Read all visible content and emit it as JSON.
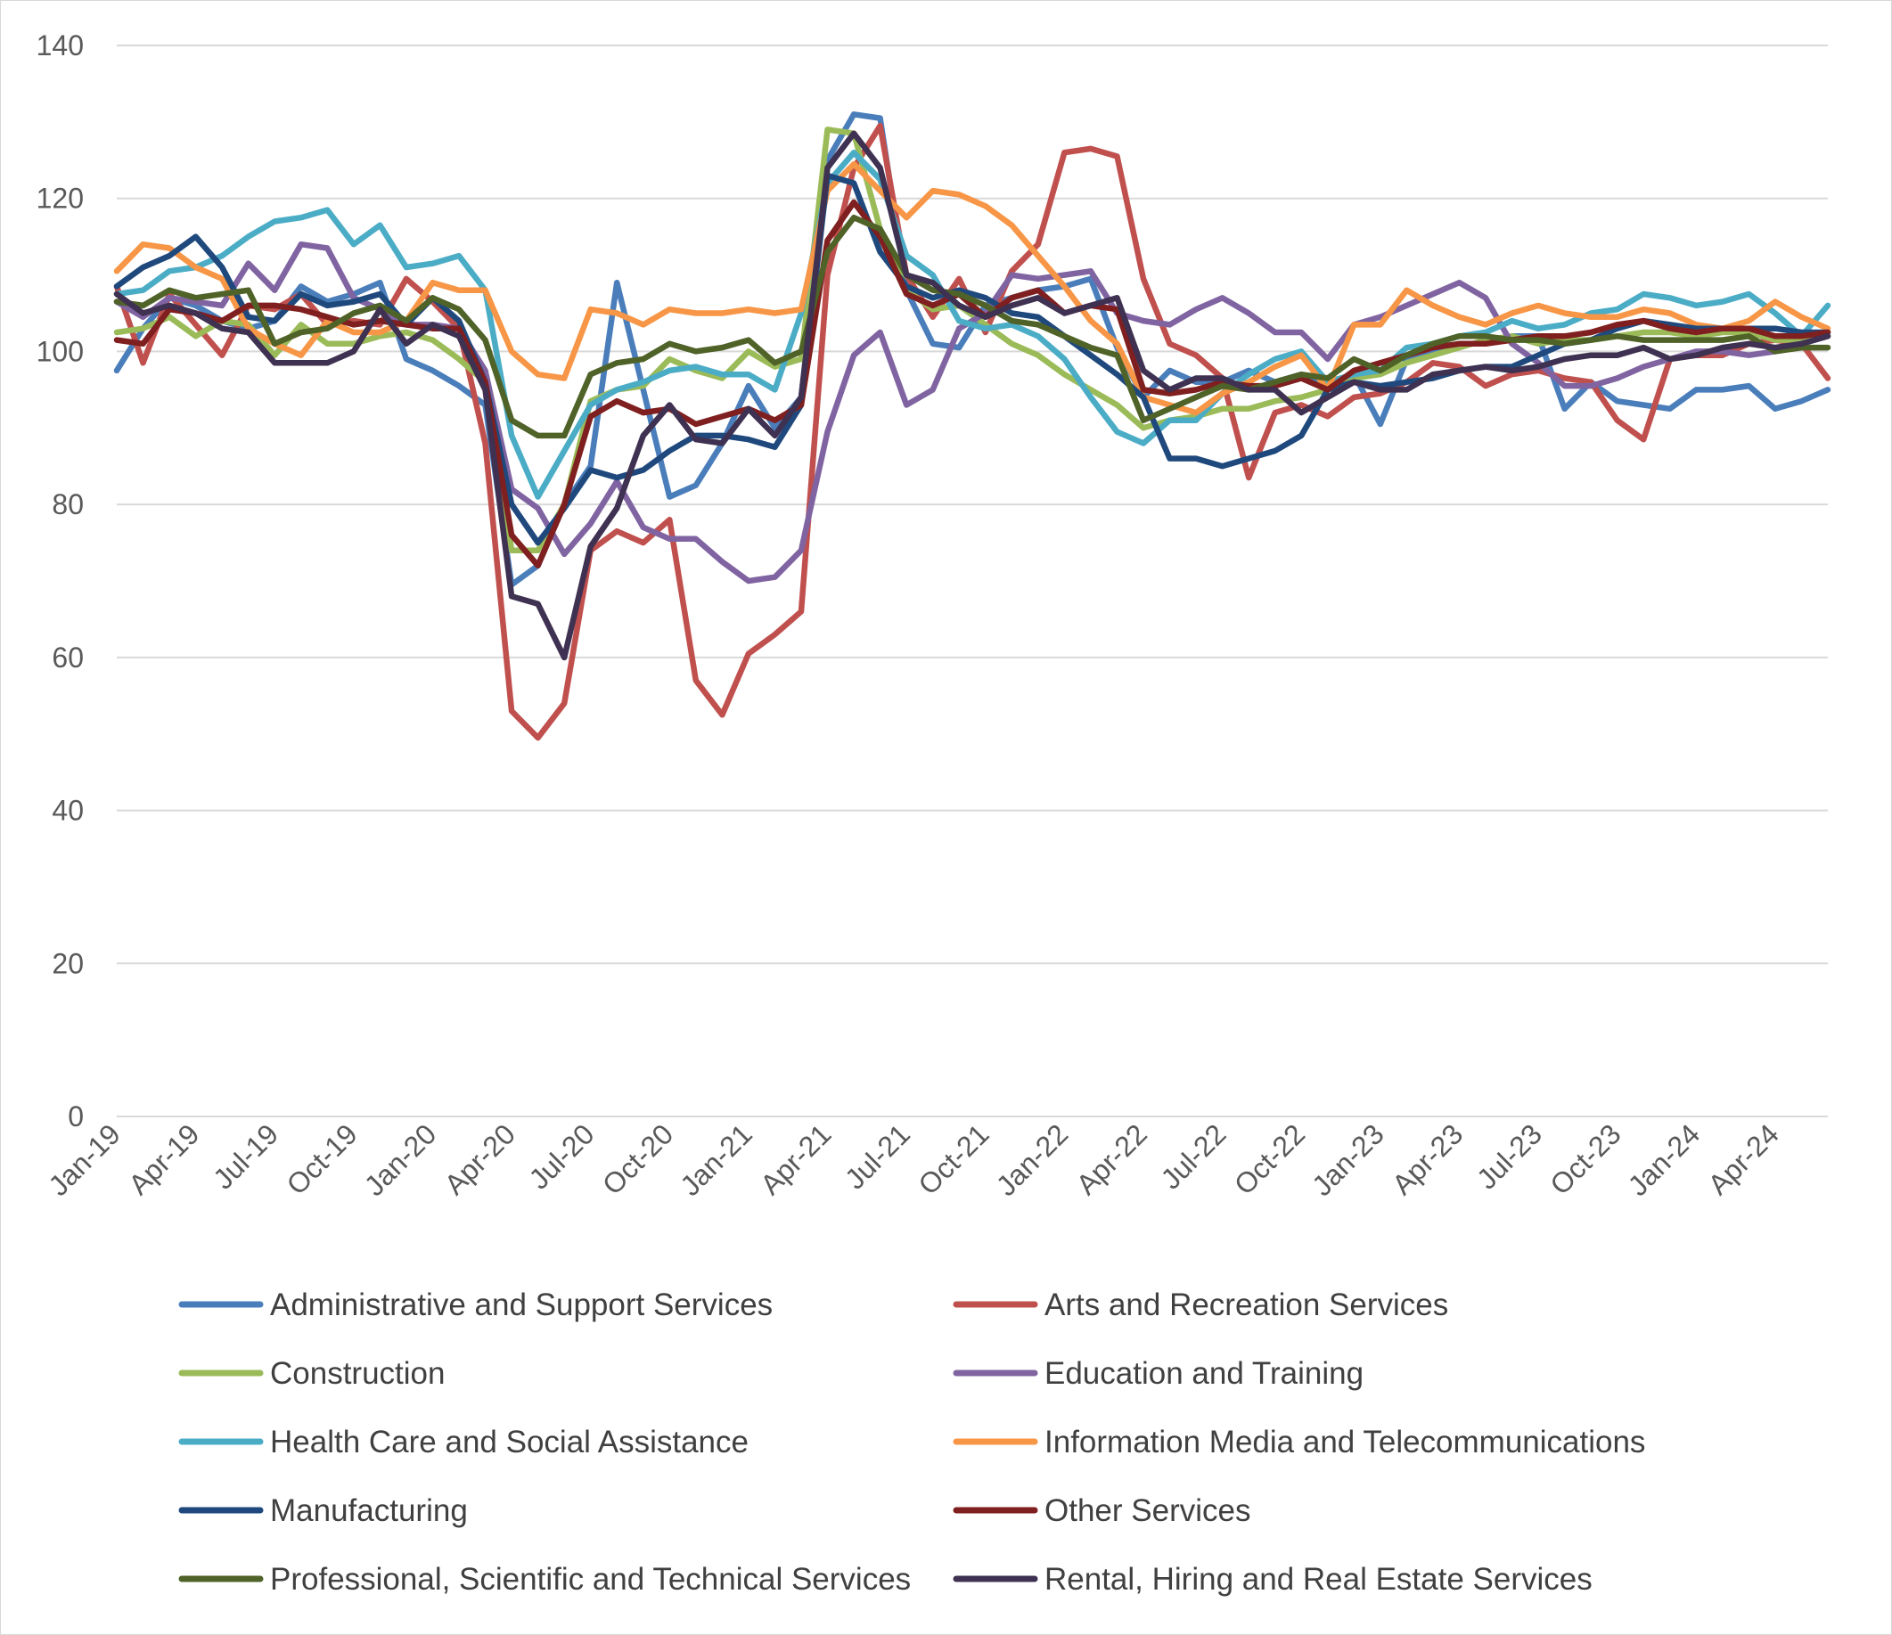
{
  "chart_data": {
    "type": "line",
    "title": "",
    "xlabel": "",
    "ylabel": "",
    "ylim": [
      0,
      140
    ],
    "yticks": [
      "0",
      "20",
      "40",
      "60",
      "80",
      "100",
      "120",
      "140"
    ],
    "grid": true,
    "legend_position": "bottom",
    "x": [
      "Jan-19",
      "Feb-19",
      "Mar-19",
      "Apr-19",
      "May-19",
      "Jun-19",
      "Jul-19",
      "Aug-19",
      "Sep-19",
      "Oct-19",
      "Nov-19",
      "Dec-19",
      "Jan-20",
      "Feb-20",
      "Mar-20",
      "Apr-20",
      "May-20",
      "Jun-20",
      "Jul-20",
      "Aug-20",
      "Sep-20",
      "Oct-20",
      "Nov-20",
      "Dec-20",
      "Jan-21",
      "Feb-21",
      "Mar-21",
      "Apr-21",
      "May-21",
      "Jun-21",
      "Jul-21",
      "Aug-21",
      "Sep-21",
      "Oct-21",
      "Nov-21",
      "Dec-21",
      "Jan-22",
      "Feb-22",
      "Mar-22",
      "Apr-22",
      "May-22",
      "Jun-22",
      "Jul-22",
      "Aug-22",
      "Sep-22",
      "Oct-22",
      "Nov-22",
      "Dec-22",
      "Jan-23",
      "Feb-23",
      "Mar-23",
      "Apr-23",
      "May-23",
      "Jun-23",
      "Jul-23",
      "Aug-23",
      "Sep-23",
      "Oct-23",
      "Nov-23",
      "Dec-23",
      "Jan-24",
      "Feb-24",
      "Mar-24",
      "Apr-24",
      "May-24",
      "Jun-24"
    ],
    "x_tick_labels": [
      "Jan-19",
      "Apr-19",
      "Jul-19",
      "Oct-19",
      "Jan-20",
      "Apr-20",
      "Jul-20",
      "Oct-20",
      "Jan-21",
      "Apr-21",
      "Jul-21",
      "Oct-21",
      "Jan-22",
      "Apr-22",
      "Jul-22",
      "Oct-22",
      "Jan-23",
      "Apr-23",
      "Jul-23",
      "Oct-23",
      "Jan-24",
      "Apr-24"
    ],
    "series": [
      {
        "name": "Administrative and Support Services",
        "color": "#4a7ebb",
        "values": [
          97.5,
          103,
          107,
          106,
          104,
          103,
          104,
          108.5,
          106.5,
          107.5,
          109,
          99,
          97.5,
          95.5,
          93,
          69.5,
          72,
          80,
          85,
          109,
          95,
          81,
          82.5,
          88,
          95.5,
          90,
          94,
          125,
          131,
          130.5,
          108,
          101,
          100.5,
          106,
          107,
          108,
          108.5,
          109.5,
          100.5,
          94,
          97.5,
          96,
          96,
          97.5,
          96,
          97,
          96,
          97,
          90.5,
          99,
          100,
          101,
          101,
          102,
          102,
          92.5,
          96,
          93.5,
          93,
          92.5,
          95,
          95,
          95.5,
          92.5,
          93.5,
          95
        ]
      },
      {
        "name": "Arts and Recreation Services",
        "color": "#c0504d",
        "values": [
          108.5,
          98.5,
          107.5,
          103.5,
          99.5,
          106,
          105.5,
          107.5,
          103.5,
          104,
          103.5,
          109.5,
          106.5,
          103,
          88,
          53,
          49.5,
          54,
          74,
          76.5,
          75,
          78,
          57,
          52.5,
          60.5,
          63,
          66,
          110,
          124,
          129.5,
          110,
          104.5,
          109.5,
          102.5,
          110.5,
          114,
          126,
          126.5,
          125.5,
          109.5,
          101,
          99.5,
          96.5,
          83.5,
          92,
          93,
          91.5,
          94,
          94.5,
          96,
          98.5,
          98,
          95.5,
          97,
          97.5,
          96.5,
          96,
          91,
          88.5,
          99,
          99.5,
          99.5,
          101,
          101.5,
          101,
          96.5
        ]
      },
      {
        "name": "Construction",
        "color": "#9bbb59",
        "values": [
          102.5,
          103,
          104.5,
          102,
          104,
          103.5,
          99.5,
          103.5,
          101,
          101,
          102,
          102.5,
          101.5,
          99,
          96,
          74,
          74,
          80,
          93.5,
          95,
          95.5,
          99,
          97.5,
          96.5,
          100,
          98,
          99,
          129,
          128.5,
          116,
          108,
          105.5,
          106,
          103.5,
          101,
          99.5,
          97,
          95,
          93,
          90,
          91,
          91.5,
          92.5,
          92.5,
          93.5,
          94,
          95,
          96.5,
          97,
          98.5,
          99.5,
          100.5,
          101.5,
          102,
          101,
          101.5,
          101.5,
          102,
          102.5,
          102.5,
          102,
          102.5,
          102.5,
          101.5,
          101.5,
          102
        ]
      },
      {
        "name": "Education and Training",
        "color": "#8064a2",
        "values": [
          106.5,
          104.5,
          107,
          106.5,
          106,
          111.5,
          108,
          114,
          113.5,
          107,
          105.5,
          103.5,
          103.5,
          103,
          97.5,
          82,
          79.5,
          73.5,
          77.5,
          83,
          77,
          75.5,
          75.5,
          72.5,
          70,
          70.5,
          74,
          89.5,
          99.5,
          102.5,
          93,
          95,
          103,
          105,
          110,
          109.5,
          110,
          110.5,
          105,
          104,
          103.5,
          105.5,
          107,
          105,
          102.5,
          102.5,
          99,
          103.5,
          104.5,
          106,
          107.5,
          109,
          107,
          101,
          98.5,
          95.5,
          95.5,
          96.5,
          98,
          99,
          100,
          100,
          99.5,
          100,
          101,
          102
        ]
      },
      {
        "name": "Health Care and Social Assistance",
        "color": "#4bacc6",
        "values": [
          107.5,
          108,
          110.5,
          111,
          112.5,
          115,
          117,
          117.5,
          118.5,
          114,
          116.5,
          111,
          111.5,
          112.5,
          108,
          89,
          81,
          87,
          93,
          95,
          96,
          97.5,
          98,
          97,
          97,
          95,
          105,
          122,
          126,
          122.5,
          112.5,
          110,
          104,
          103,
          103.5,
          102,
          99,
          94,
          89.5,
          88,
          91,
          91,
          94.5,
          97,
          99,
          100,
          96,
          97,
          97.5,
          100.5,
          101,
          102,
          102.5,
          104,
          103,
          103.5,
          105,
          105.5,
          107.5,
          107,
          106,
          106.5,
          107.5,
          105,
          102,
          106
        ]
      },
      {
        "name": "Information Media and Telecommunications",
        "color": "#f79646",
        "values": [
          110.5,
          114,
          113.5,
          111,
          109.5,
          103,
          101,
          99.5,
          104,
          102.5,
          102.5,
          104,
          109,
          108,
          108,
          100,
          97,
          96.5,
          105.5,
          105,
          103.5,
          105.5,
          105,
          105,
          105.5,
          105,
          105.5,
          121,
          124.5,
          121,
          117.5,
          121,
          120.5,
          119,
          116.5,
          112.5,
          108.5,
          104,
          101,
          94,
          93,
          92,
          94.5,
          96,
          98,
          99.5,
          95,
          103.5,
          103.5,
          108,
          106,
          104.5,
          103.5,
          105,
          106,
          105,
          104.5,
          104.5,
          105.5,
          105,
          103.5,
          103,
          104,
          106.5,
          104.5,
          103
        ]
      },
      {
        "name": "Manufacturing",
        "color": "#1f497d",
        "values": [
          108.5,
          111,
          112.5,
          115,
          111,
          104.5,
          104,
          107.5,
          106,
          106.5,
          107.5,
          103.5,
          107,
          104,
          96,
          80,
          75,
          79.5,
          84.5,
          83.5,
          84.5,
          87,
          89,
          89,
          88.5,
          87.5,
          93,
          123,
          122,
          113,
          108.5,
          107,
          108,
          107,
          105,
          104.5,
          102,
          99.5,
          97,
          94,
          86,
          86,
          85,
          86,
          87,
          89,
          95,
          96,
          95.5,
          96,
          96.5,
          97.5,
          98,
          98,
          99.5,
          101,
          101.5,
          103,
          104,
          103.5,
          103,
          103,
          103,
          103,
          102.5,
          102.5
        ]
      },
      {
        "name": "Other Services",
        "color": "#7f1f1f",
        "values": [
          101.5,
          101,
          105.5,
          105,
          104,
          106,
          106,
          105.5,
          104.5,
          103.5,
          104,
          103.5,
          103,
          103,
          96,
          76,
          72,
          80,
          91.5,
          93.5,
          92,
          92.5,
          90.5,
          91.5,
          92.5,
          91,
          93,
          114.5,
          119.5,
          115,
          107.5,
          106,
          107.5,
          104.5,
          107,
          108,
          105,
          106,
          105.5,
          95,
          94.5,
          95,
          96,
          95.5,
          95.5,
          96.5,
          95,
          97.5,
          98.5,
          99.5,
          100.5,
          101,
          101,
          101.5,
          102,
          102,
          102.5,
          103.5,
          104,
          103,
          102.5,
          103,
          103,
          102,
          102,
          102.5
        ]
      },
      {
        "name": "Professional, Scientific and Technical Services",
        "color": "#4f6228",
        "values": [
          106.5,
          106,
          108,
          107,
          107.5,
          108,
          101,
          102.5,
          103,
          105,
          106,
          104,
          107,
          105.5,
          101.5,
          91,
          89,
          89,
          97,
          98.5,
          99,
          101,
          100,
          100.5,
          101.5,
          98.5,
          100,
          113,
          117.5,
          116,
          110,
          108,
          107.5,
          106,
          104,
          103.5,
          102,
          100.5,
          99.5,
          91,
          92.5,
          94,
          95.5,
          95,
          96,
          97,
          96.5,
          99,
          97.5,
          99.5,
          101,
          102,
          102,
          101.5,
          101.5,
          101,
          101.5,
          102,
          101.5,
          101.5,
          101.5,
          101.5,
          102,
          100,
          100.5,
          100.5
        ]
      },
      {
        "name": "Rental, Hiring and Real Estate Services",
        "color": "#3f3151",
        "values": [
          107.5,
          105,
          106,
          105,
          103,
          102.5,
          98.5,
          98.5,
          98.5,
          100,
          105.5,
          101,
          103.5,
          102,
          95,
          68,
          67,
          60,
          74.5,
          79.5,
          89,
          93,
          88.5,
          88,
          92.5,
          89,
          94,
          124,
          128.5,
          124,
          110,
          109,
          106,
          104.5,
          106,
          107,
          105,
          106,
          107,
          97.5,
          95,
          96.5,
          96.5,
          95,
          95,
          92,
          94,
          96,
          95,
          95,
          97,
          97.5,
          98,
          97.5,
          98,
          99,
          99.5,
          99.5,
          100.5,
          99,
          99.5,
          100.5,
          101,
          100.5,
          101,
          102
        ]
      }
    ]
  }
}
